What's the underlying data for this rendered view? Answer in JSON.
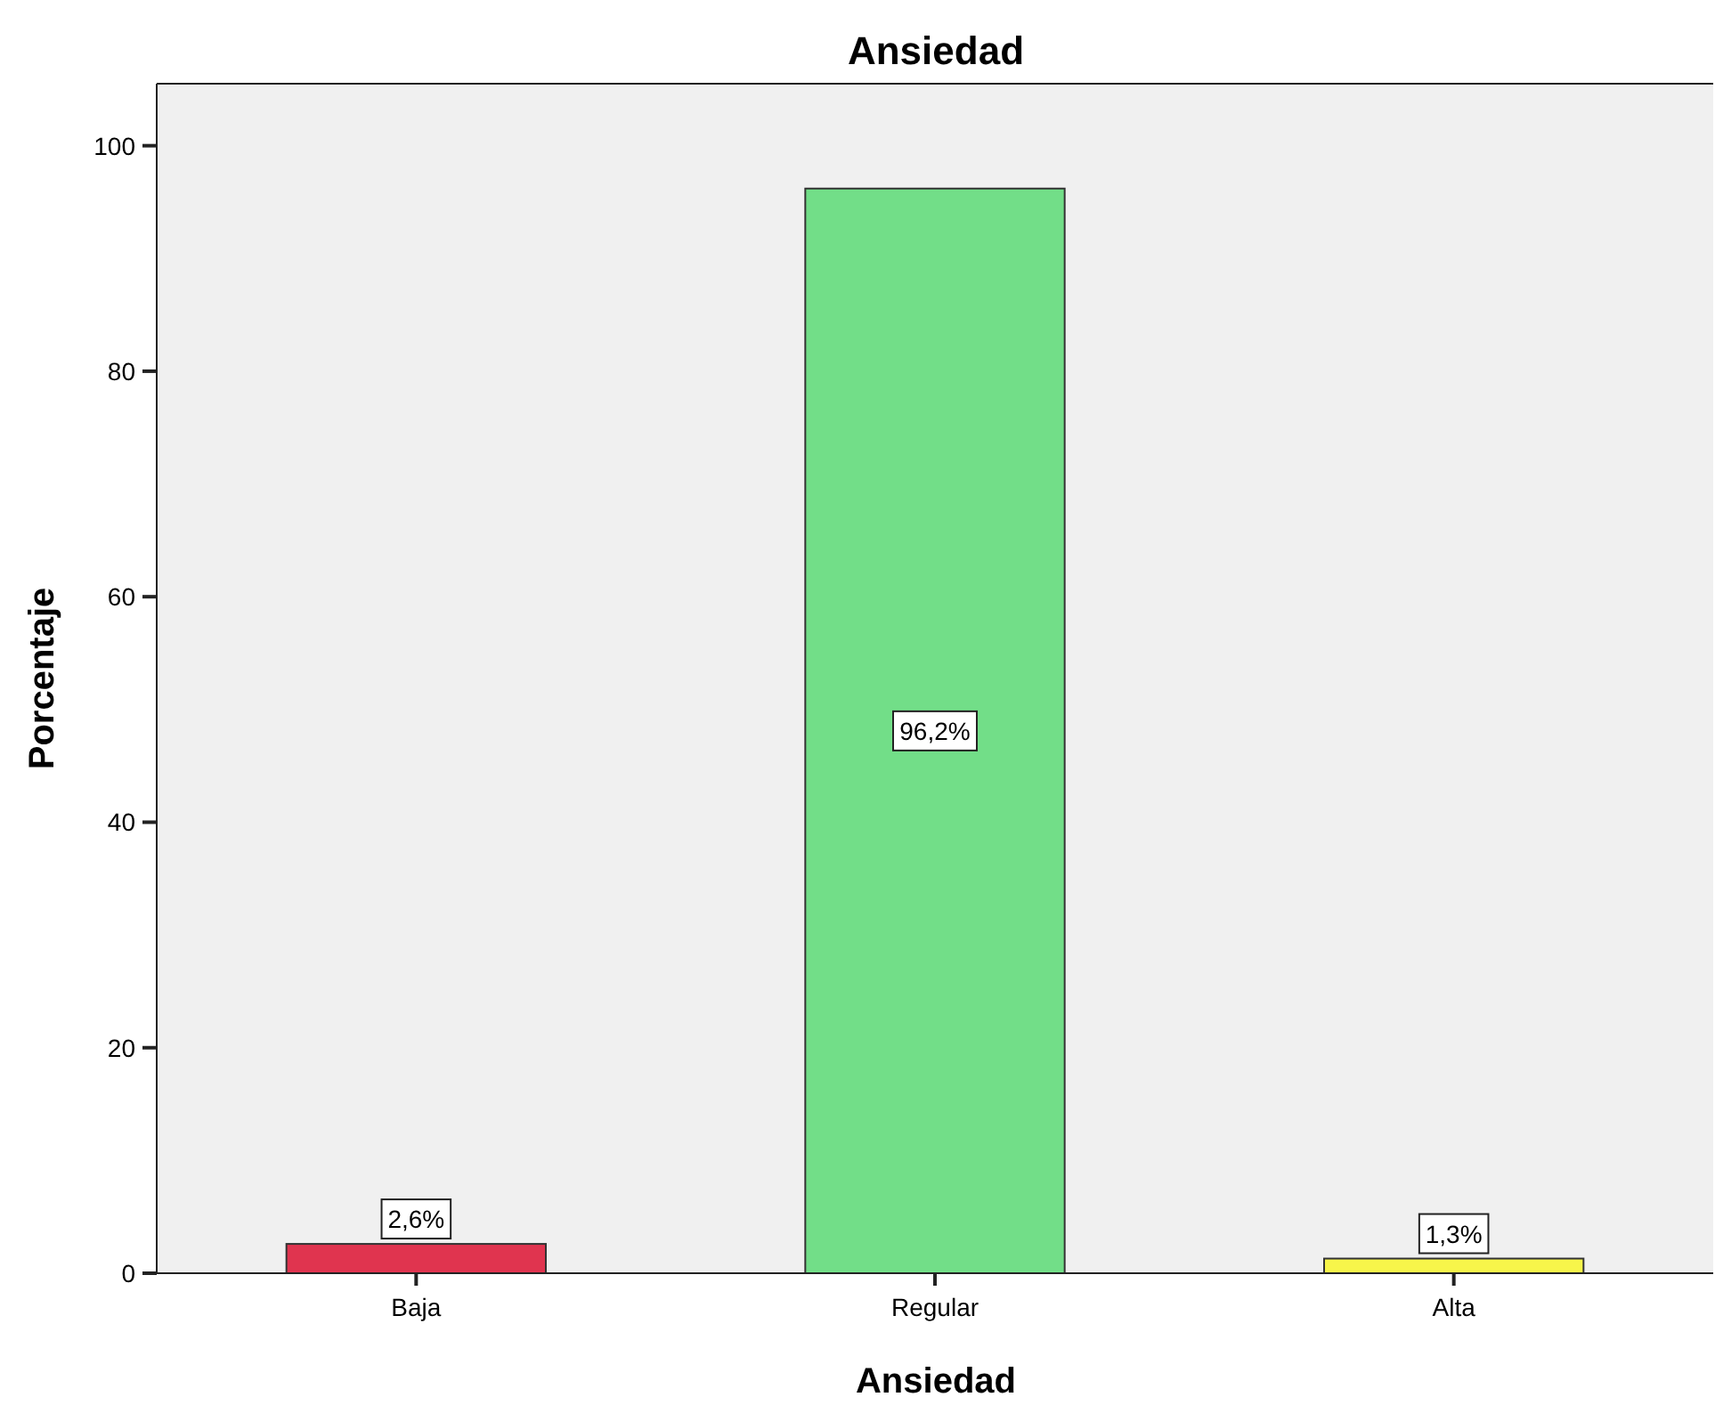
{
  "chart_data": {
    "type": "bar",
    "title": "Ansiedad",
    "xlabel": "Ansiedad",
    "ylabel": "Porcentaje",
    "categories": [
      "Baja",
      "Regular",
      "Alta"
    ],
    "values": [
      2.6,
      96.2,
      1.3
    ],
    "colors": [
      "#e0344f",
      "#72de88",
      "#f7f54a"
    ],
    "value_labels": [
      "2,6%",
      "96,2%",
      "1,3%"
    ],
    "ylim": [
      0,
      105.5
    ],
    "yticks": [
      0,
      20,
      40,
      60,
      80,
      100
    ],
    "grid": false
  }
}
